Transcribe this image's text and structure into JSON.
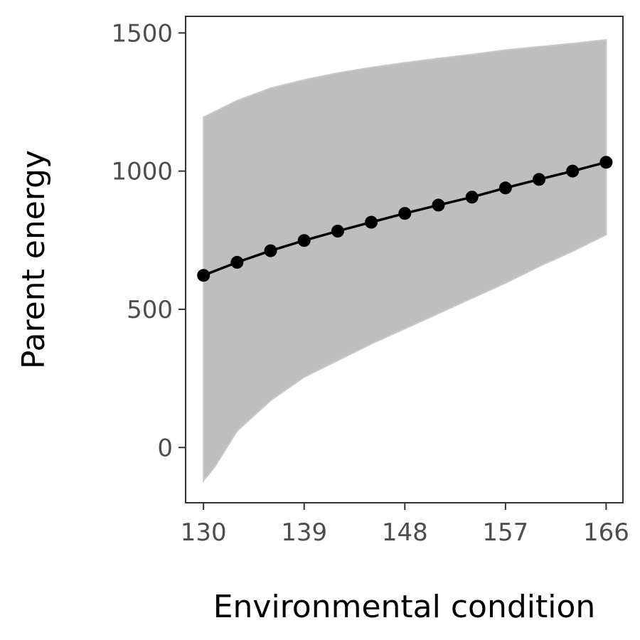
{
  "chart_data": {
    "type": "line",
    "title": "",
    "xlabel": "Environmental condition",
    "ylabel": "Parent energy",
    "xlim": [
      128.4,
      167.5
    ],
    "ylim": [
      -200,
      1560
    ],
    "x_ticks": [
      130,
      139,
      148,
      157,
      166
    ],
    "y_ticks": [
      0,
      500,
      1000,
      1500
    ],
    "grid": false,
    "legend": "none",
    "colors": {
      "band": "#bebebe",
      "line": "#000000",
      "axis": "#333333",
      "tick_text": "#4d4d4d"
    },
    "band": {
      "x": [
        130,
        131,
        133,
        136,
        139,
        142,
        145,
        148,
        151,
        154,
        157,
        160,
        163,
        166
      ],
      "lower": [
        -120,
        -70,
        60,
        170,
        255,
        315,
        375,
        430,
        485,
        540,
        595,
        655,
        710,
        770
      ],
      "upper": [
        1195,
        1215,
        1255,
        1300,
        1330,
        1355,
        1375,
        1392,
        1408,
        1422,
        1438,
        1450,
        1462,
        1475
      ]
    },
    "series": [
      {
        "x": [
          130,
          133,
          136,
          139,
          142,
          145,
          148,
          151,
          154,
          157,
          160,
          163,
          166
        ],
        "values": [
          623,
          670,
          712,
          749,
          783,
          815,
          847,
          877,
          906,
          939,
          970,
          1000,
          1032
        ]
      }
    ]
  }
}
